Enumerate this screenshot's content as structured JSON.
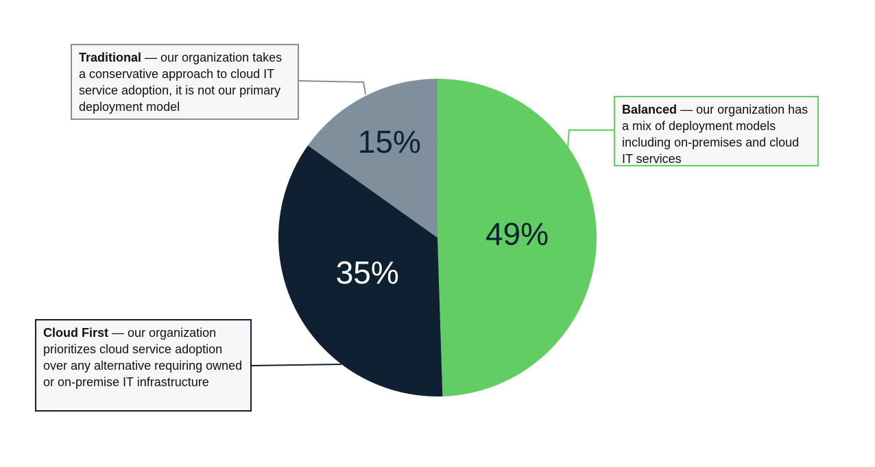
{
  "chart_data": {
    "type": "pie",
    "categories": [
      "Balanced",
      "Cloud First",
      "Traditional"
    ],
    "descriptions": [
      "— our organization has a mix of deployment models including on-premises and cloud IT services",
      "— our organization prioritizes cloud service adoption over any alternative requiring owned or on-premise IT infrastructure",
      "— our organization takes a conservative approach to cloud IT service adoption, it is not our primary deployment model"
    ],
    "values": [
      49,
      35,
      15
    ],
    "value_labels": [
      "49%",
      "35%",
      "15%"
    ],
    "colors": [
      "#62cd62",
      "#0f2032",
      "#7f8f9b"
    ]
  }
}
